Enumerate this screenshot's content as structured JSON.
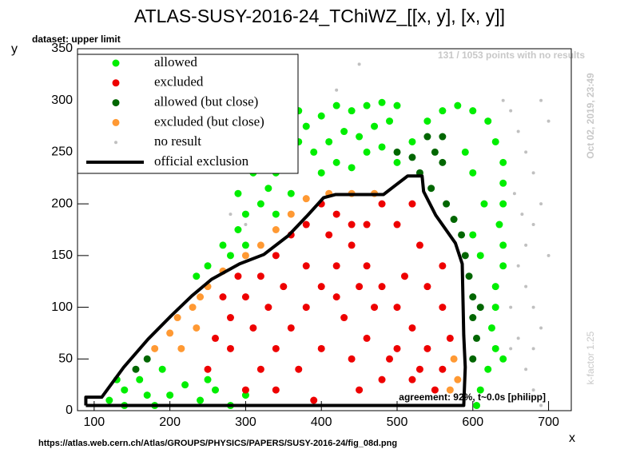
{
  "chart_data": {
    "type": "scatter",
    "title": "ATLAS-SUSY-2016-24_TChiWZ_[[x, y], [x, y]]",
    "subtitle": "dataset: upper limit",
    "x_label": "x",
    "y_label": "y",
    "annotations": [
      "131 / 1053 points with no results",
      "Oct 02, 2019, 23:49",
      "k-factor 1.25",
      "agreement: 92%, t~0.0s [philipp]",
      "https://atlas.web.cern.ch/Atlas/GROUPS/PHYSICS/PAPERS/SUSY-2016-24/fig_08d.png"
    ],
    "xlim": [
      78,
      730
    ],
    "ylim": [
      0,
      350
    ],
    "xticks": [
      100,
      200,
      300,
      400,
      500,
      600,
      700
    ],
    "yticks": [
      0,
      50,
      100,
      150,
      200,
      250,
      300,
      350
    ],
    "series": [
      {
        "name": "allowed",
        "color": "#00ee00",
        "style": "marker",
        "x": [
          120,
          140,
          160,
          180,
          200,
          220,
          240,
          260,
          280,
          300,
          170,
          190,
          250,
          140,
          130,
          250,
          270,
          290,
          300,
          320,
          330,
          340,
          360,
          370,
          380,
          400,
          420,
          440,
          460,
          480,
          500,
          390,
          410,
          430,
          450,
          470,
          490,
          400,
          420,
          440,
          460,
          480,
          500,
          520,
          540,
          560,
          580,
          600,
          620,
          630,
          640,
          640,
          640,
          635,
          640,
          640,
          630,
          630,
          625,
          630,
          640,
          620,
          610,
          605,
          610,
          615,
          600,
          590,
          600,
          300,
          280,
          340,
          360,
          235,
          310,
          290,
          350,
          330,
          370
        ],
        "values": [
          10,
          20,
          30,
          5,
          15,
          25,
          10,
          20,
          5,
          15,
          15,
          40,
          30,
          5,
          30,
          140,
          160,
          175,
          190,
          200,
          215,
          230,
          245,
          260,
          275,
          285,
          295,
          290,
          295,
          298,
          295,
          250,
          260,
          270,
          265,
          275,
          280,
          230,
          240,
          235,
          250,
          255,
          240,
          260,
          280,
          290,
          295,
          290,
          280,
          260,
          240,
          220,
          200,
          180,
          160,
          140,
          120,
          100,
          80,
          60,
          50,
          40,
          20,
          5,
          150,
          200,
          230,
          250,
          170,
          160,
          150,
          190,
          210,
          130,
          230,
          210,
          260,
          250,
          290
        ]
      },
      {
        "name": "excluded",
        "color": "#ee0000",
        "style": "marker",
        "x": [
          300,
          320,
          340,
          360,
          380,
          400,
          420,
          440,
          460,
          480,
          260,
          280,
          300,
          320,
          340,
          360,
          380,
          400,
          420,
          440,
          460,
          480,
          500,
          520,
          540,
          560,
          550,
          520,
          490,
          460,
          430,
          400,
          370,
          340,
          390,
          450,
          510,
          530,
          540,
          560,
          560,
          500,
          520,
          470,
          420,
          350,
          310,
          280,
          330,
          380,
          440,
          480,
          570,
          250,
          270,
          290,
          410,
          450,
          500,
          530
        ],
        "values": [
          20,
          40,
          60,
          80,
          100,
          120,
          140,
          160,
          180,
          200,
          70,
          90,
          110,
          130,
          150,
          170,
          180,
          200,
          190,
          180,
          140,
          120,
          100,
          80,
          60,
          40,
          20,
          30,
          50,
          70,
          90,
          60,
          40,
          20,
          10,
          20,
          130,
          160,
          120,
          100,
          140,
          180,
          200,
          100,
          110,
          120,
          80,
          60,
          100,
          140,
          50,
          30,
          70,
          40,
          110,
          130,
          170,
          120,
          60,
          40
        ]
      },
      {
        "name": "allowed (but close)",
        "color": "#006600",
        "style": "marker",
        "x": [
          530,
          545,
          550,
          560,
          565,
          575,
          585,
          590,
          595,
          600,
          600,
          605,
          600,
          610,
          500,
          520,
          540,
          560,
          155,
          170
        ],
        "values": [
          230,
          215,
          250,
          240,
          200,
          185,
          170,
          150,
          130,
          110,
          90,
          70,
          50,
          100,
          250,
          245,
          265,
          265,
          40,
          50
        ]
      },
      {
        "name": "excluded (but close)",
        "color": "#ff9933",
        "style": "marker",
        "x": [
          180,
          200,
          210,
          230,
          240,
          250,
          270,
          300,
          320,
          340,
          360,
          380,
          410,
          440,
          470,
          575,
          580,
          570,
          215,
          235
        ],
        "values": [
          60,
          75,
          90,
          100,
          110,
          120,
          135,
          150,
          160,
          175,
          190,
          205,
          210,
          210,
          210,
          50,
          30,
          20,
          60,
          80
        ]
      },
      {
        "name": "no result",
        "color": "#c0c0c0",
        "style": "small",
        "x": [
          650,
          660,
          670,
          680,
          690,
          680,
          670,
          660,
          670,
          680,
          690,
          680,
          670,
          680,
          690,
          655,
          665,
          650,
          660,
          700,
          690,
          640,
          650,
          700,
          450,
          420,
          300,
          280
        ],
        "values": [
          290,
          270,
          250,
          230,
          200,
          180,
          160,
          140,
          120,
          100,
          80,
          60,
          40,
          20,
          5,
          210,
          190,
          100,
          70,
          280,
          300,
          300,
          60,
          150,
          335,
          310,
          180,
          190
        ]
      },
      {
        "name": "official exclusion",
        "color": "#000000",
        "style": "line",
        "x": [
          89,
          89,
          110,
          139,
          171,
          202,
          229,
          255,
          292,
          324,
          356,
          382,
          403,
          419,
          482,
          498,
          514,
          533,
          535,
          551,
          577,
          586,
          588,
          590,
          588,
          89
        ],
        "values": [
          5,
          13,
          13,
          42,
          69,
          92,
          111,
          127,
          142,
          151,
          169,
          189,
          206,
          209,
          209,
          218,
          227,
          227,
          212,
          189,
          162,
          142,
          73,
          42,
          5,
          5
        ]
      }
    ]
  }
}
